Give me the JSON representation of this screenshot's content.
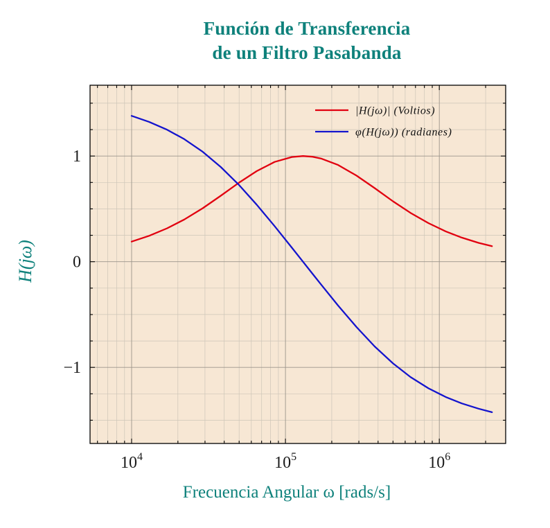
{
  "figure": {
    "title": "Función de Transferencia\nde un Filtro Pasabanda",
    "title_color": "#0e817b",
    "background_color": "#ffffff",
    "plot_background_color": "#f7e7d4"
  },
  "axes": {
    "xlabel": "Frecuencia Angular ω [rads/s]",
    "ylabel": "H(jω)",
    "label_color": "#0e817b",
    "frame_color": "#000000",
    "major_grid_color": "#9b948a",
    "minor_grid_color": "#cdc5b8",
    "tick_label_color": "#1a1a1a"
  },
  "chart_data": {
    "type": "line",
    "x_scale": "log",
    "xlim": [
      5370,
      2700000
    ],
    "ylim": [
      -1.72,
      1.67
    ],
    "x_ticks": [
      10000,
      100000,
      1000000
    ],
    "x_tick_labels": [
      "10^4",
      "10^5",
      "10^6"
    ],
    "y_ticks": [
      -1,
      0,
      1
    ],
    "y_tick_labels": [
      "−1",
      "0",
      "1"
    ],
    "grid": "both",
    "legend_position": "top-right",
    "title": "Función de Transferencia de un Filtro Pasabanda",
    "xlabel": "Frecuencia Angular ω [rads/s]",
    "ylabel": "H(jω)",
    "series": [
      {
        "name": "|H(jω)| (Voltios)",
        "color": "#e1000f",
        "x": [
          10000,
          13000,
          17000,
          22000,
          29000,
          38000,
          50000,
          65000,
          85000,
          110000,
          130000,
          150000,
          170000,
          220000,
          290000,
          380000,
          500000,
          650000,
          850000,
          1100000,
          1400000,
          1800000,
          2200000
        ],
        "y": [
          0.19,
          0.245,
          0.316,
          0.399,
          0.506,
          0.624,
          0.749,
          0.857,
          0.944,
          0.991,
          1.0,
          0.993,
          0.977,
          0.915,
          0.814,
          0.696,
          0.572,
          0.462,
          0.365,
          0.287,
          0.228,
          0.178,
          0.147
        ]
      },
      {
        "name": "φ(H(jω)) (radianes)",
        "color": "#1414cd",
        "x": [
          10000,
          13000,
          17000,
          22000,
          29000,
          38000,
          50000,
          65000,
          85000,
          110000,
          130000,
          150000,
          170000,
          220000,
          290000,
          380000,
          500000,
          650000,
          850000,
          1100000,
          1400000,
          1800000,
          2200000
        ],
        "y": [
          1.38,
          1.323,
          1.249,
          1.16,
          1.04,
          0.896,
          0.725,
          0.54,
          0.337,
          0.133,
          0.0,
          -0.114,
          -0.214,
          -0.415,
          -0.619,
          -0.802,
          -0.962,
          -1.091,
          -1.198,
          -1.28,
          -1.341,
          -1.391,
          -1.424
        ]
      }
    ]
  }
}
